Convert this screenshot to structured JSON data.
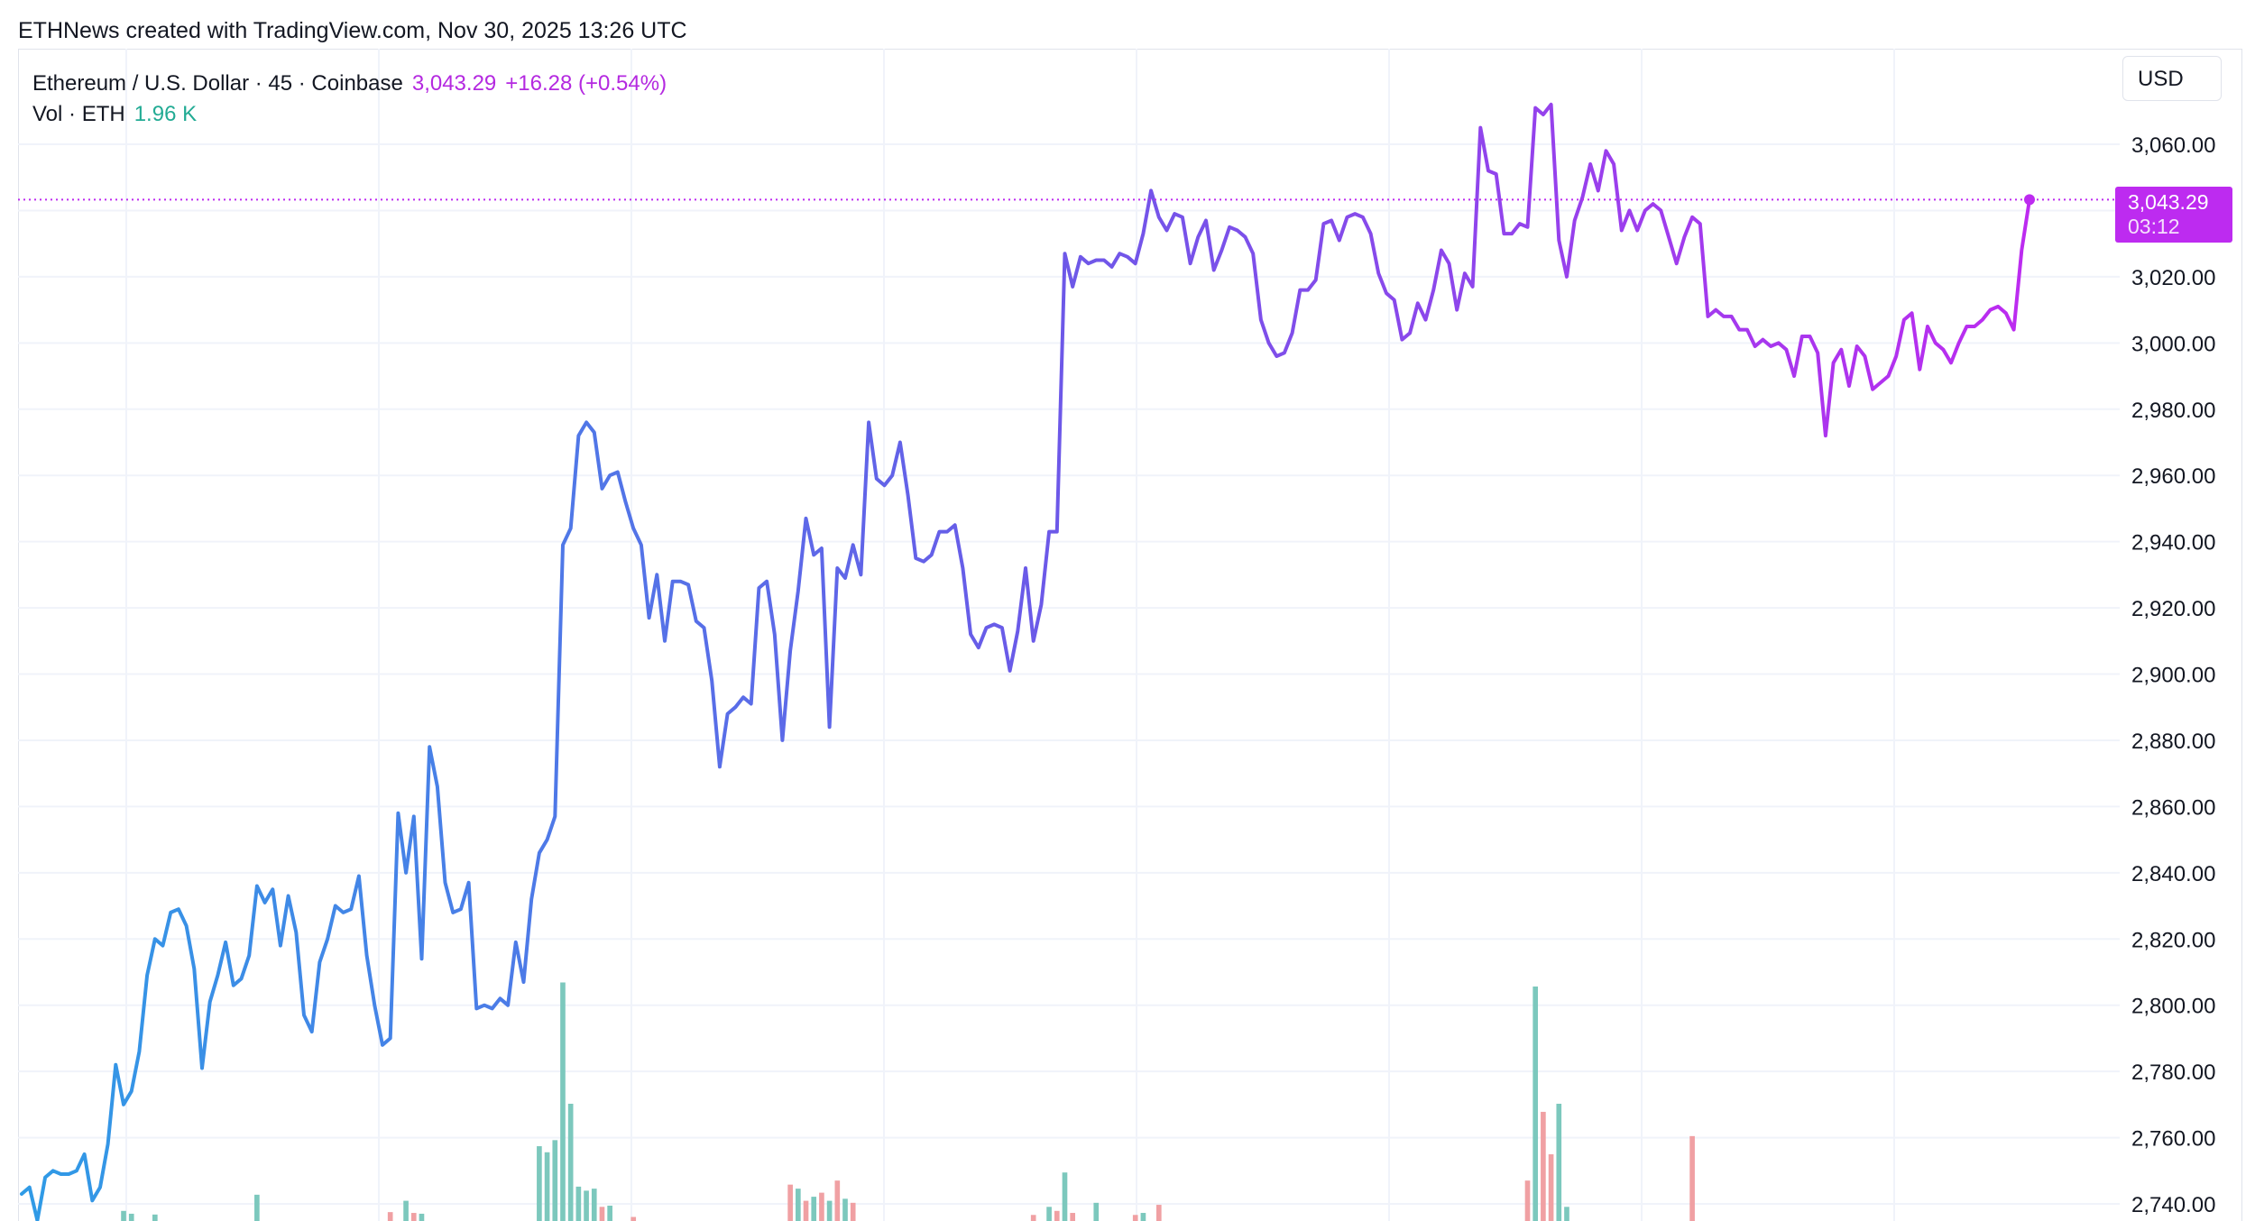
{
  "header": {
    "attribution": "ETHNews created with TradingView.com, Nov 30, 2025 13:26 UTC"
  },
  "legend": {
    "symbol": "Ethereum / U.S. Dollar · 45 · Coinbase",
    "price": "3,043.29",
    "change": "+16.28 (+0.54%)",
    "volume_label": "Vol · ETH",
    "volume_value": "1.96 K"
  },
  "price_scale": {
    "currency": "USD",
    "last_price_label": "3,043.29",
    "countdown": "03:12"
  },
  "colors": {
    "line_start": "#2f9be6",
    "line_mid": "#6a5ae8",
    "line_end": "#bd2bf0",
    "volume_up": "#7cc8bd",
    "volume_down": "#f0a0a3",
    "grid": "#f0f3fa",
    "last_price": "#bd2bf0"
  },
  "chart_data": {
    "type": "line",
    "ylim": [
      2735,
      3075
    ],
    "y_ticks": [
      "3,060.00",
      "3,040.00",
      "3,020.00",
      "3,000.00",
      "2,980.00",
      "2,960.00",
      "2,940.00",
      "2,920.00",
      "2,900.00",
      "2,880.00",
      "2,860.00",
      "2,840.00",
      "2,820.00",
      "2,800.00",
      "2,780.00",
      "2,760.00",
      "2,740.00"
    ],
    "series": [
      {
        "values": [
          2743,
          2745,
          2735,
          2748,
          2750,
          2749,
          2749,
          2750,
          2755,
          2741,
          2745,
          2758,
          2782,
          2770,
          2774,
          2786,
          2809,
          2820,
          2818,
          2828,
          2829,
          2824,
          2811,
          2781,
          2801,
          2809,
          2819,
          2806,
          2808,
          2815,
          2836,
          2831,
          2835,
          2818,
          2833,
          2822,
          2797,
          2792,
          2813,
          2820,
          2830,
          2828,
          2829,
          2839,
          2815,
          2800,
          2788,
          2790,
          2858,
          2840,
          2857,
          2814,
          2878,
          2866,
          2837,
          2828,
          2829,
          2837,
          2799,
          2800,
          2799,
          2802,
          2800,
          2819,
          2807,
          2832,
          2846,
          2850,
          2857,
          2939,
          2944,
          2972,
          2976,
          2973,
          2956,
          2960,
          2961,
          2952,
          2944,
          2939,
          2917,
          2930,
          2910,
          2928,
          2928,
          2927,
          2916,
          2914,
          2898,
          2872,
          2888,
          2890,
          2893,
          2891,
          2926,
          2928,
          2912,
          2880,
          2907,
          2925,
          2947,
          2936,
          2938,
          2884,
          2932,
          2929,
          2939,
          2930,
          2976,
          2959,
          2957,
          2960,
          2970,
          2954,
          2935,
          2934,
          2936,
          2943,
          2943,
          2945,
          2932,
          2912,
          2908,
          2914,
          2915,
          2914,
          2901,
          2913,
          2932,
          2910,
          2921,
          2943,
          2943,
          3027,
          3017,
          3026,
          3024,
          3025,
          3025,
          3023,
          3027,
          3026,
          3024,
          3033,
          3046,
          3038,
          3034,
          3039,
          3038,
          3024,
          3032,
          3037,
          3022,
          3028,
          3035,
          3034,
          3032,
          3027,
          3007,
          3000,
          2996,
          2997,
          3003,
          3016,
          3016,
          3019,
          3036,
          3037,
          3031,
          3038,
          3039,
          3038,
          3033,
          3021,
          3015,
          3013,
          3001,
          3003,
          3012,
          3007,
          3016,
          3028,
          3024,
          3010,
          3021,
          3017,
          3065,
          3052,
          3051,
          3033,
          3033,
          3036,
          3035,
          3071,
          3069,
          3072,
          3031,
          3020,
          3037,
          3044,
          3054,
          3046,
          3058,
          3054,
          3034,
          3040,
          3034,
          3040,
          3042,
          3040,
          3032,
          3024,
          3032,
          3038,
          3036,
          3008,
          3010,
          3008,
          3008,
          3004,
          3004,
          2999,
          3001,
          2999,
          3000,
          2998,
          2990,
          3002,
          3002,
          2997,
          2972,
          2994,
          2998,
          2987,
          2999,
          2996,
          2986,
          2988,
          2990,
          2996,
          3007,
          3009,
          2992,
          3005,
          3000,
          2998,
          2994,
          3000,
          3005,
          3005,
          3007,
          3010,
          3011,
          3009,
          3004,
          3028,
          3043.29
        ]
      }
    ],
    "volume": [
      {
        "i": 13,
        "v": 0.25,
        "up": true
      },
      {
        "i": 14,
        "v": 0.18,
        "up": true
      },
      {
        "i": 17,
        "v": 0.16,
        "up": true
      },
      {
        "i": 30,
        "v": 0.65,
        "up": true
      },
      {
        "i": 47,
        "v": 0.22,
        "up": false
      },
      {
        "i": 49,
        "v": 0.5,
        "up": true
      },
      {
        "i": 50,
        "v": 0.2,
        "up": false
      },
      {
        "i": 51,
        "v": 0.18,
        "up": true
      },
      {
        "i": 66,
        "v": 1.85,
        "up": true
      },
      {
        "i": 67,
        "v": 1.7,
        "up": true
      },
      {
        "i": 68,
        "v": 2.0,
        "up": true
      },
      {
        "i": 69,
        "v": 5.9,
        "up": true
      },
      {
        "i": 70,
        "v": 2.9,
        "up": true
      },
      {
        "i": 71,
        "v": 0.85,
        "up": true
      },
      {
        "i": 72,
        "v": 0.75,
        "up": true
      },
      {
        "i": 73,
        "v": 0.8,
        "up": true
      },
      {
        "i": 74,
        "v": 0.35,
        "up": false
      },
      {
        "i": 75,
        "v": 0.38,
        "up": true
      },
      {
        "i": 78,
        "v": 0.1,
        "up": false
      },
      {
        "i": 98,
        "v": 0.9,
        "up": false
      },
      {
        "i": 99,
        "v": 0.8,
        "up": true
      },
      {
        "i": 100,
        "v": 0.5,
        "up": false
      },
      {
        "i": 101,
        "v": 0.6,
        "up": true
      },
      {
        "i": 102,
        "v": 0.7,
        "up": false
      },
      {
        "i": 103,
        "v": 0.5,
        "up": true
      },
      {
        "i": 104,
        "v": 1.0,
        "up": false
      },
      {
        "i": 105,
        "v": 0.55,
        "up": true
      },
      {
        "i": 106,
        "v": 0.45,
        "up": false
      },
      {
        "i": 129,
        "v": 0.15,
        "up": false
      },
      {
        "i": 131,
        "v": 0.35,
        "up": true
      },
      {
        "i": 132,
        "v": 0.25,
        "up": false
      },
      {
        "i": 133,
        "v": 1.2,
        "up": true
      },
      {
        "i": 134,
        "v": 0.2,
        "up": false
      },
      {
        "i": 137,
        "v": 0.45,
        "up": true
      },
      {
        "i": 142,
        "v": 0.15,
        "up": false
      },
      {
        "i": 143,
        "v": 0.2,
        "up": true
      },
      {
        "i": 145,
        "v": 0.4,
        "up": false
      },
      {
        "i": 192,
        "v": 1.0,
        "up": false
      },
      {
        "i": 193,
        "v": 5.8,
        "up": true
      },
      {
        "i": 194,
        "v": 2.7,
        "up": false
      },
      {
        "i": 195,
        "v": 1.65,
        "up": false
      },
      {
        "i": 196,
        "v": 2.9,
        "up": true
      },
      {
        "i": 197,
        "v": 0.35,
        "up": true
      },
      {
        "i": 213,
        "v": 2.1,
        "up": false
      }
    ]
  }
}
